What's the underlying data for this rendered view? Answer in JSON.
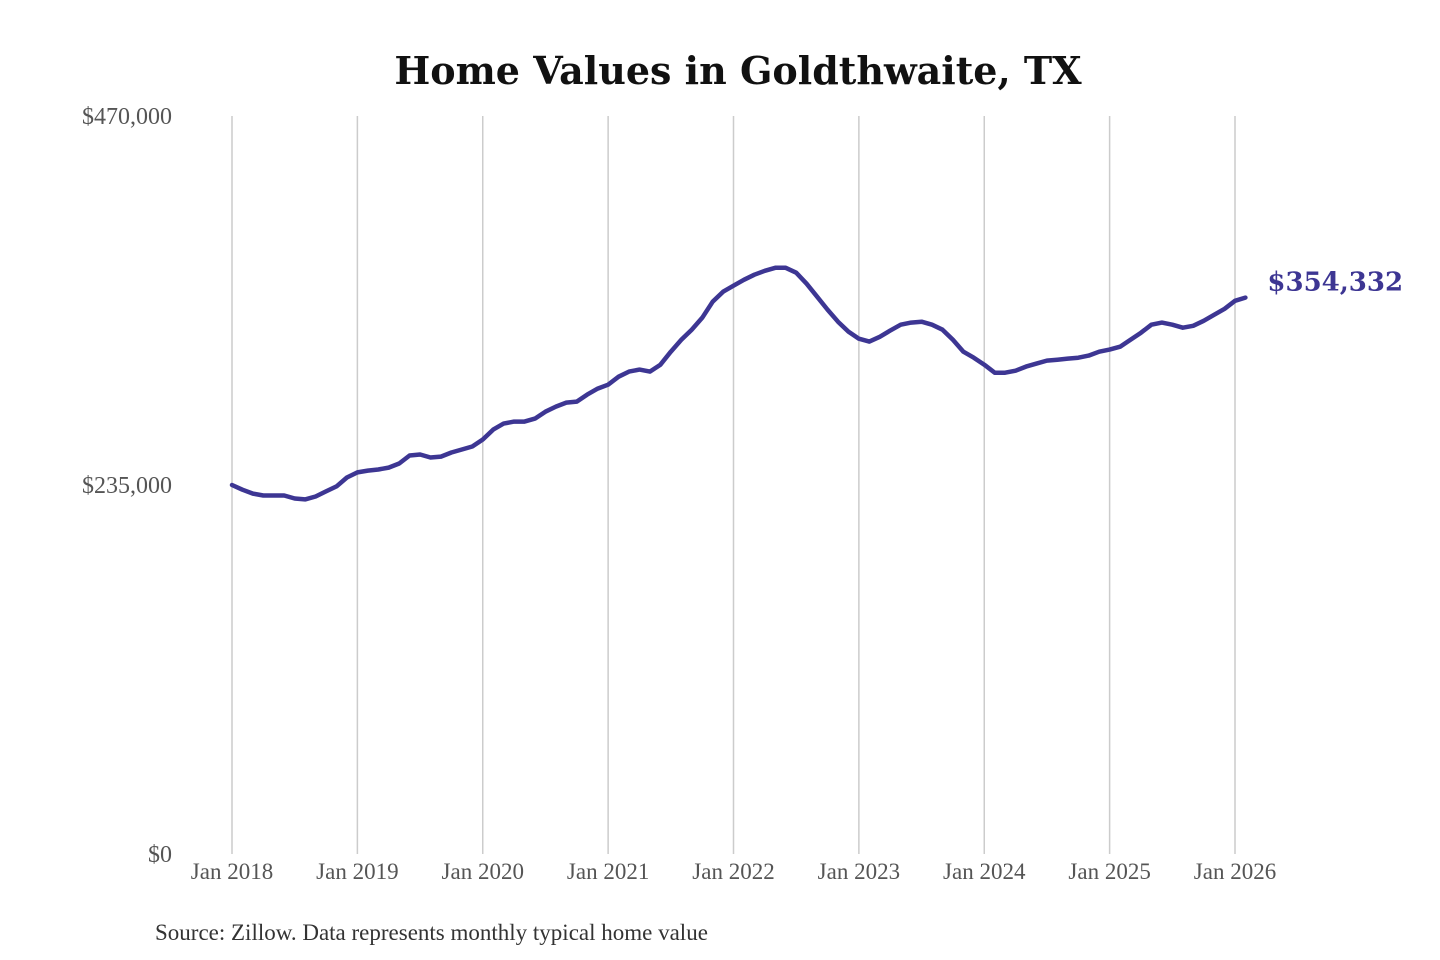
{
  "chart_data": {
    "type": "line",
    "title": "Home Values in Goldthwaite, TX",
    "xlabel": "",
    "ylabel": "",
    "ylim": [
      0,
      470000
    ],
    "grid": "vertical-only",
    "legend": "none",
    "y_tick_values": [
      0,
      235000,
      470000
    ],
    "y_tick_labels": [
      "$0",
      "$235,000",
      "$470,000"
    ],
    "x_tick_labels": [
      "Jan 2018",
      "Jan 2019",
      "Jan 2020",
      "Jan 2021",
      "Jan 2022",
      "Jan 2023",
      "Jan 2024",
      "Jan 2025",
      "Jan 2026"
    ],
    "annotation": {
      "text": "$354,332",
      "value": 354332,
      "position": "end-of-line"
    },
    "source_note": "Source: Zillow. Data represents monthly typical home value",
    "series": [
      {
        "name": "Monthly typical home value",
        "start": "2018-01",
        "end": "2026-02",
        "frequency": "monthly",
        "values": [
          235000,
          232000,
          229500,
          228300,
          228300,
          228300,
          226400,
          225800,
          227700,
          230900,
          234100,
          239800,
          243000,
          244200,
          244900,
          246100,
          248700,
          253800,
          254400,
          252500,
          253100,
          255700,
          257600,
          259500,
          264000,
          270300,
          274100,
          275400,
          275400,
          277300,
          281700,
          284900,
          287500,
          288100,
          292600,
          296400,
          298900,
          304000,
          307200,
          308500,
          307200,
          311600,
          319900,
          327500,
          333900,
          341500,
          351700,
          358100,
          361900,
          365700,
          368900,
          371400,
          373300,
          373300,
          370200,
          363200,
          354900,
          346700,
          339000,
          332700,
          328200,
          326300,
          329400,
          333300,
          337100,
          338400,
          339000,
          337100,
          333900,
          327500,
          319900,
          316100,
          311600,
          306500,
          306500,
          307800,
          310400,
          312300,
          314200,
          314800,
          315500,
          316100,
          317400,
          319900,
          321200,
          323100,
          327500,
          332000,
          337100,
          338400,
          337100,
          335200,
          336400,
          339600,
          343400,
          347200,
          352300,
          354332
        ]
      }
    ],
    "colors": {
      "line": "#3d3693",
      "annotation": "#3d3693",
      "grid": "#cccccc",
      "tick_label": "#555555",
      "title": "#111111",
      "source": "#333333",
      "background": "#ffffff"
    }
  }
}
